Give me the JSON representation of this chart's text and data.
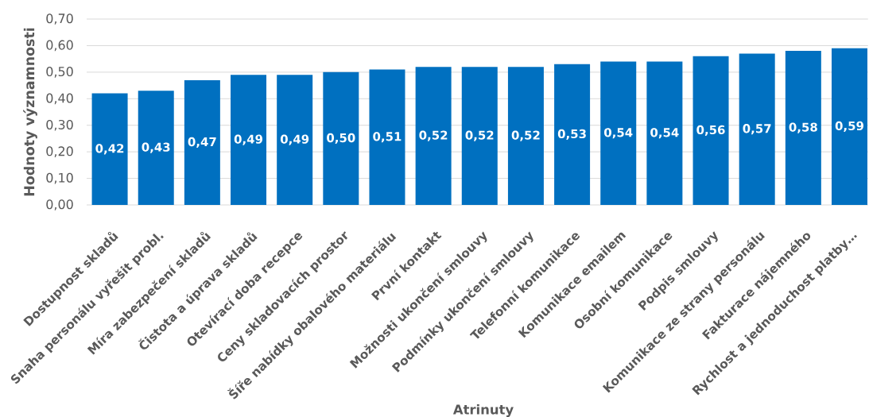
{
  "chart_data": {
    "type": "bar",
    "xlabel": "Atrinuty",
    "ylabel": "Hodnoty významnosti",
    "categories": [
      "Dostupnost skladů",
      "Snaha personálu vyřešit probl.",
      "Míra zabezpečení skladů",
      "Čistota a úprava skladů",
      "Otevírací doba recepce",
      "Ceny skladovacích prostor",
      "Šíře nabídky obalového materiálu",
      "První kontakt",
      "Možnosti ukončení smlouvy",
      "Podmínky ukončení smlouvy",
      "Telefonní komunikace",
      "Komunikace emailem",
      "Osobní komunikace",
      "Podpis smlouvy",
      "Komunikace ze strany personálu",
      "Fakturace nájemného",
      "Rychlost a jednoduchost platby…"
    ],
    "values": [
      0.42,
      0.43,
      0.47,
      0.49,
      0.49,
      0.5,
      0.51,
      0.52,
      0.52,
      0.52,
      0.53,
      0.54,
      0.54,
      0.56,
      0.57,
      0.58,
      0.59
    ],
    "value_labels": [
      "0,42",
      "0,43",
      "0,47",
      "0,49",
      "0,49",
      "0,50",
      "0,51",
      "0,52",
      "0,52",
      "0,52",
      "0,53",
      "0,54",
      "0,54",
      "0,56",
      "0,57",
      "0,58",
      "0,59"
    ],
    "color": "#0070c0",
    "ylim": [
      0,
      0.7
    ],
    "yticks": [
      {
        "value": 0,
        "label": "0,00"
      },
      {
        "value": 0.1,
        "label": "0,10"
      },
      {
        "value": 0.2,
        "label": "0,20"
      },
      {
        "value": 0.3,
        "label": "0,30"
      },
      {
        "value": 0.4,
        "label": "0,40"
      },
      {
        "value": 0.5,
        "label": "0,50"
      },
      {
        "value": 0.6,
        "label": "0,60"
      },
      {
        "value": 0.7,
        "label": "0,70"
      }
    ],
    "grid": "y"
  }
}
